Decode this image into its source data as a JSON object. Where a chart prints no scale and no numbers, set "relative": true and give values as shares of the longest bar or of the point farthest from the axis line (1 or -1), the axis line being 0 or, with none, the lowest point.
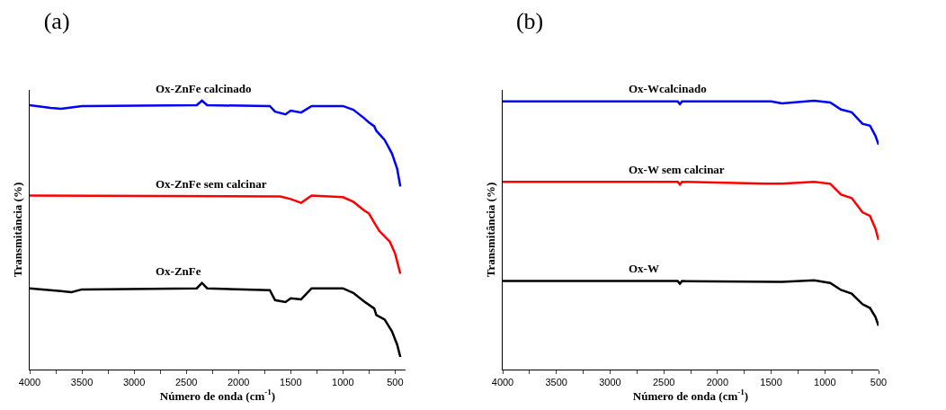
{
  "chart_data": [
    {
      "type": "line",
      "title": "(a)",
      "xlabel": "Número de onda (cm$^{-1}$)",
      "ylabel": "Transmitância (%)",
      "relative": true,
      "xlim": [
        4000,
        400
      ],
      "xticks": [
        4000,
        {
          "value": 3750,
          "label": null
        },
        3500,
        {
          "value": 3250,
          "label": null
        },
        3000,
        {
          "value": 2750,
          "label": null
        },
        2500,
        {
          "value": 2250,
          "label": null
        },
        2000,
        {
          "value": 1750,
          "label": null
        },
        1500,
        {
          "value": 1250,
          "label": null
        },
        1000,
        {
          "value": 750,
          "label": null
        },
        500
      ],
      "grid": false,
      "legend": false,
      "line_style": "solid",
      "marker": "none",
      "series": [
        {
          "name": "Ox-ZnFe calcinado",
          "color": "#0000ff",
          "x": [
            4000,
            3800,
            3700,
            3500,
            2400,
            2350,
            2300,
            1700,
            1650,
            1550,
            1500,
            1400,
            1300,
            1000,
            900,
            800,
            750,
            700,
            680,
            600,
            530,
            480,
            450
          ],
          "values": [
            0.983,
            0.973,
            0.97,
            0.98,
            0.983,
            1.0,
            0.983,
            0.98,
            0.959,
            0.949,
            0.963,
            0.956,
            0.98,
            0.98,
            0.966,
            0.936,
            0.919,
            0.905,
            0.888,
            0.854,
            0.803,
            0.746,
            0.681
          ]
        },
        {
          "name": "Ox-ZnFe sem calcinar",
          "color": "#ff0000",
          "x": [
            4000,
            1600,
            1500,
            1400,
            1300,
            1000,
            900,
            800,
            750,
            700,
            650,
            550,
            500,
            450
          ],
          "values": [
            0.647,
            0.644,
            0.634,
            0.62,
            0.647,
            0.641,
            0.624,
            0.593,
            0.58,
            0.546,
            0.515,
            0.475,
            0.431,
            0.356
          ]
        },
        {
          "name": "Ox-ZnFe",
          "color": "#000000",
          "x": [
            4000,
            3700,
            3600,
            3500,
            2400,
            2350,
            2300,
            1700,
            1650,
            1550,
            1500,
            1400,
            1300,
            1000,
            900,
            800,
            700,
            680,
            600,
            530,
            480,
            450
          ],
          "values": [
            0.302,
            0.292,
            0.288,
            0.298,
            0.302,
            0.322,
            0.302,
            0.295,
            0.258,
            0.251,
            0.265,
            0.261,
            0.302,
            0.302,
            0.285,
            0.254,
            0.227,
            0.203,
            0.186,
            0.142,
            0.092,
            0.047
          ]
        }
      ]
    },
    {
      "type": "line",
      "title": "(b)",
      "xlabel": "Número de onda (cm$^{-1}$)",
      "ylabel": "Transmitância (%)",
      "relative": true,
      "xlim": [
        4000,
        500
      ],
      "xticks": [
        4000,
        {
          "value": 3750,
          "label": null
        },
        3500,
        {
          "value": 3250,
          "label": null
        },
        3000,
        {
          "value": 2750,
          "label": null
        },
        2500,
        {
          "value": 2250,
          "label": null
        },
        2000,
        {
          "value": 1750,
          "label": null
        },
        1500,
        {
          "value": 1250,
          "label": null
        },
        1000,
        {
          "value": 750,
          "label": null
        },
        500
      ],
      "grid": false,
      "legend": false,
      "line_style": "solid",
      "marker": "none",
      "series": [
        {
          "name": "Ox-Wcalcinado",
          "color": "#0000ff",
          "x": [
            4000,
            2370,
            2350,
            2330,
            1500,
            1400,
            1100,
            950,
            850,
            750,
            650,
            580,
            530,
            500
          ],
          "values": [
            0.997,
            0.997,
            0.987,
            0.997,
            0.997,
            0.99,
            1.0,
            0.993,
            0.967,
            0.957,
            0.914,
            0.907,
            0.87,
            0.837
          ]
        },
        {
          "name": "Ox-W sem calcinar",
          "color": "#ff0000",
          "x": [
            4000,
            2370,
            2350,
            2330,
            1550,
            1400,
            1100,
            950,
            850,
            750,
            650,
            580,
            530,
            500
          ],
          "values": [
            0.698,
            0.698,
            0.688,
            0.698,
            0.691,
            0.691,
            0.698,
            0.691,
            0.651,
            0.638,
            0.585,
            0.571,
            0.525,
            0.482
          ]
        },
        {
          "name": "Ox-W",
          "color": "#000000",
          "x": [
            4000,
            2370,
            2350,
            2330,
            1400,
            1100,
            950,
            850,
            750,
            650,
            580,
            530,
            500
          ],
          "values": [
            0.329,
            0.329,
            0.319,
            0.329,
            0.326,
            0.332,
            0.322,
            0.296,
            0.282,
            0.243,
            0.229,
            0.196,
            0.163
          ]
        }
      ]
    }
  ]
}
